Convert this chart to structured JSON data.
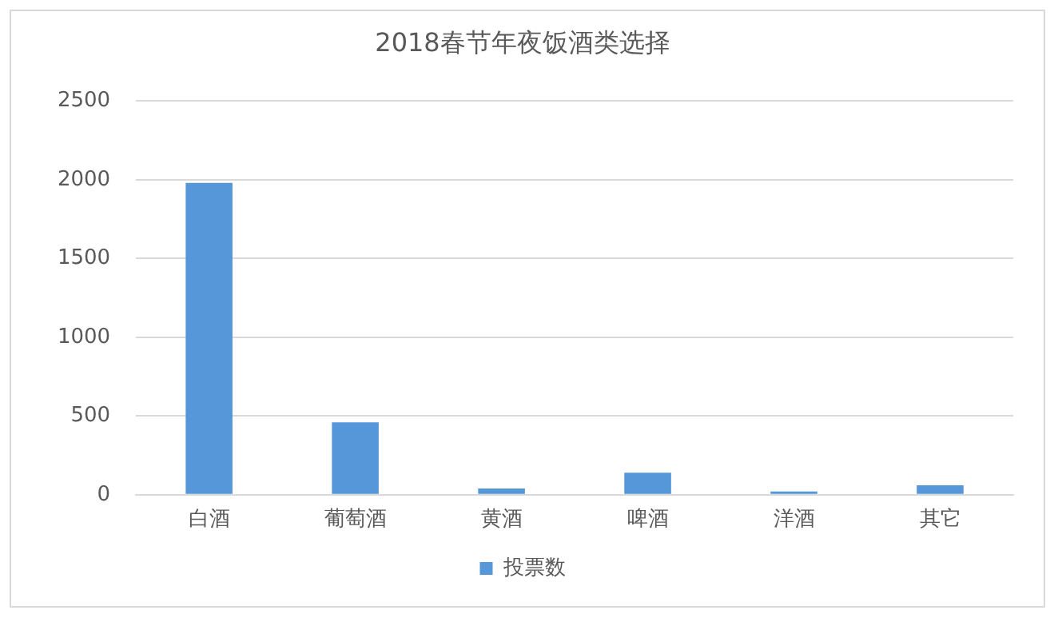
{
  "chart_data": {
    "type": "bar",
    "title": "2018春节年夜饭酒类选择",
    "categories": [
      "白酒",
      "葡萄酒",
      "黄酒",
      "啤酒",
      "洋酒",
      "其它"
    ],
    "series": [
      {
        "name": "投票数",
        "color": "#5597d8",
        "values": [
          1980,
          460,
          40,
          140,
          20,
          60
        ]
      }
    ],
    "ylim": [
      0,
      2500
    ],
    "yticks": [
      0,
      500,
      1000,
      1500,
      2000,
      2500
    ],
    "grid": "y",
    "legend": "bottom"
  }
}
